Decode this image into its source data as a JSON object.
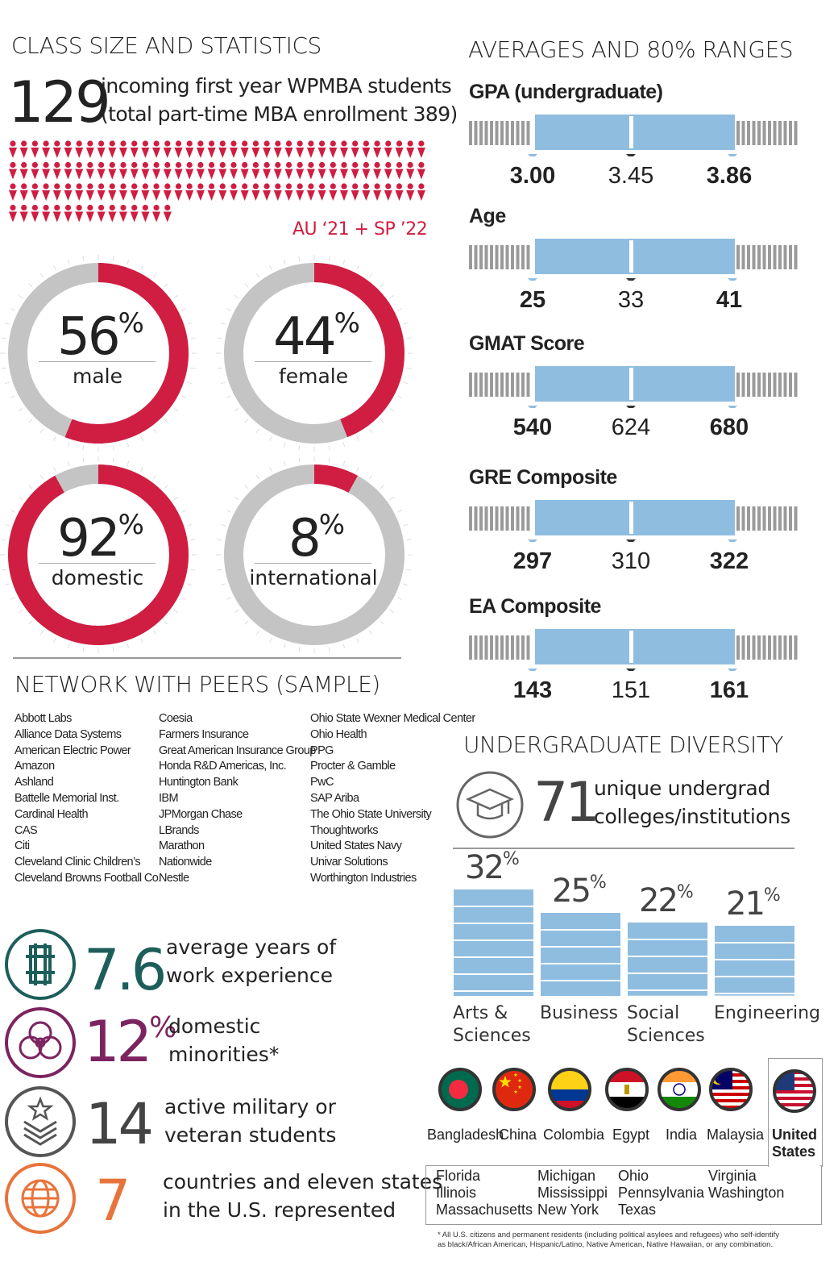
{
  "class_section": {
    "title": "CLASS SIZE AND STATISTICS",
    "count": "129",
    "line1": "incoming first year WPMBA students",
    "line2": "(total part-time MBA enrollment 389)",
    "term": "AU ‘21 + SP ’22",
    "people_icons": 129,
    "colors": {
      "red": "#cf1e42",
      "gray": "#c4c4c4"
    }
  },
  "donuts": [
    {
      "percent": "56",
      "value": 56,
      "label": "male"
    },
    {
      "percent": "44",
      "value": 44,
      "label": "female"
    },
    {
      "percent": "92",
      "value": 92,
      "label": "domestic"
    },
    {
      "percent": "8",
      "value": 8,
      "label": "international"
    }
  ],
  "percent_sign": "%",
  "ranges_section": {
    "title": "AVERAGES AND 80% RANGES",
    "items": [
      {
        "title": "GPA (undergraduate)",
        "low": "3.00",
        "avg": "3.45",
        "high": "3.86"
      },
      {
        "title": "Age",
        "low": "25",
        "avg": "33",
        "high": "41"
      },
      {
        "title": "GMAT Score",
        "low": "540",
        "avg": "624",
        "high": "680"
      },
      {
        "title": "GRE Composite",
        "low": "297",
        "avg": "310",
        "high": "322"
      },
      {
        "title": "EA Composite",
        "low": "143",
        "avg": "151",
        "high": "161"
      }
    ],
    "colors": {
      "bar": "#8fbde0",
      "stripe": "#9a9a9a"
    }
  },
  "network": {
    "title": "NETWORK WITH PEERS (SAMPLE)",
    "col1": [
      "Abbott Labs",
      "Alliance Data Systems",
      "American Electric Power",
      "Amazon",
      "Ashland",
      "Battelle Memorial Inst.",
      "Cardinal Health",
      "CAS",
      "Citi",
      "Cleveland Clinic Children’s",
      "Cleveland Browns Football Co."
    ],
    "col2": [
      "Coesia",
      "Farmers Insurance",
      "Great American Insurance Group",
      "Honda R&D Americas, Inc.",
      "Huntington Bank",
      "IBM",
      "JPMorgan Chase",
      "LBrands",
      "Marathon",
      "Nationwide",
      "Nestle"
    ],
    "col3": [
      "Ohio State Wexner Medical Center",
      "Ohio Health",
      "PPG",
      "Procter & Gamble",
      "PwC",
      "SAP Ariba",
      "The Ohio State University",
      "Thoughtworks",
      "United States Navy",
      "Univar Solutions",
      "Worthington Industries"
    ]
  },
  "stats": [
    {
      "value": "7.6",
      "sup": "",
      "line1": "average years of",
      "line2": "work experience",
      "icon": "work-experience-icon",
      "color": "#1d5e5a"
    },
    {
      "value": "12",
      "sup": "%",
      "line1": "domestic",
      "line2": "minorities*",
      "icon": "minorities-icon",
      "color": "#7b2460"
    },
    {
      "value": "14",
      "sup": "",
      "line1": "active military or",
      "line2": "veteran students",
      "icon": "military-icon",
      "color": "#555555"
    },
    {
      "value": "7",
      "sup": "",
      "line1": "countries and eleven states",
      "line2": "in the U.S. represented",
      "icon": "globe-icon",
      "color": "#e8743b"
    }
  ],
  "diversity": {
    "title": "UNDERGRADUATE DIVERSITY",
    "count": "71",
    "line1": "unique undergrad",
    "line2": "colleges/institutions",
    "bars": [
      {
        "percent": "32",
        "value": 32,
        "line1": "Arts &",
        "line2": "Sciences"
      },
      {
        "percent": "25",
        "value": 25,
        "line1": "Business",
        "line2": ""
      },
      {
        "percent": "22",
        "value": 22,
        "line1": "Social",
        "line2": "Sciences"
      },
      {
        "percent": "21",
        "value": 21,
        "line1": "Engineering",
        "line2": ""
      }
    ]
  },
  "countries": {
    "items": [
      "Bangladesh",
      "China",
      "Colombia",
      "Egypt",
      "India",
      "Malaysia"
    ],
    "us_line1": "United",
    "us_line2": "States",
    "states": [
      [
        "Florida",
        "Illinois",
        "Massachusetts"
      ],
      [
        "Michigan",
        "Mississippi",
        "New York"
      ],
      [
        "Ohio",
        "Pennsylvania",
        "Texas"
      ],
      [
        "Virginia",
        "Washington"
      ]
    ]
  },
  "footnote": {
    "line1": "* All U.S. citizens and permanent residents (including political asylees and refugees) who self-identify",
    "line2": "as black/African American, Hispanic/Latino, Native American, Native Hawaiian, or any combination."
  }
}
